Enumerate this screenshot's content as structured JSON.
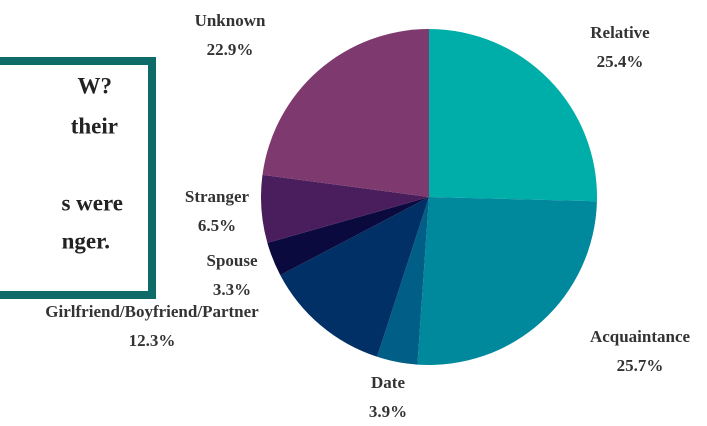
{
  "chart_data": {
    "type": "pie",
    "annotation": [
      "W?",
      "their",
      "s were",
      "nger."
    ],
    "categories": [
      "Relative",
      "Acquaintance",
      "Date",
      "Girlfriend/Boyfriend/Partner",
      "Spouse",
      "Stranger",
      "Unknown"
    ],
    "values": [
      25.4,
      25.7,
      3.9,
      12.3,
      3.3,
      6.5,
      22.9
    ],
    "value_labels": [
      "25.4%",
      "25.7%",
      "3.9%",
      "12.3%",
      "3.3%",
      "6.5%",
      "22.9%"
    ],
    "colors": [
      "#00aea9",
      "#00889d",
      "#005e87",
      "#003066",
      "#0b0a3e",
      "#4a1d5c",
      "#7e3a6e"
    ]
  }
}
